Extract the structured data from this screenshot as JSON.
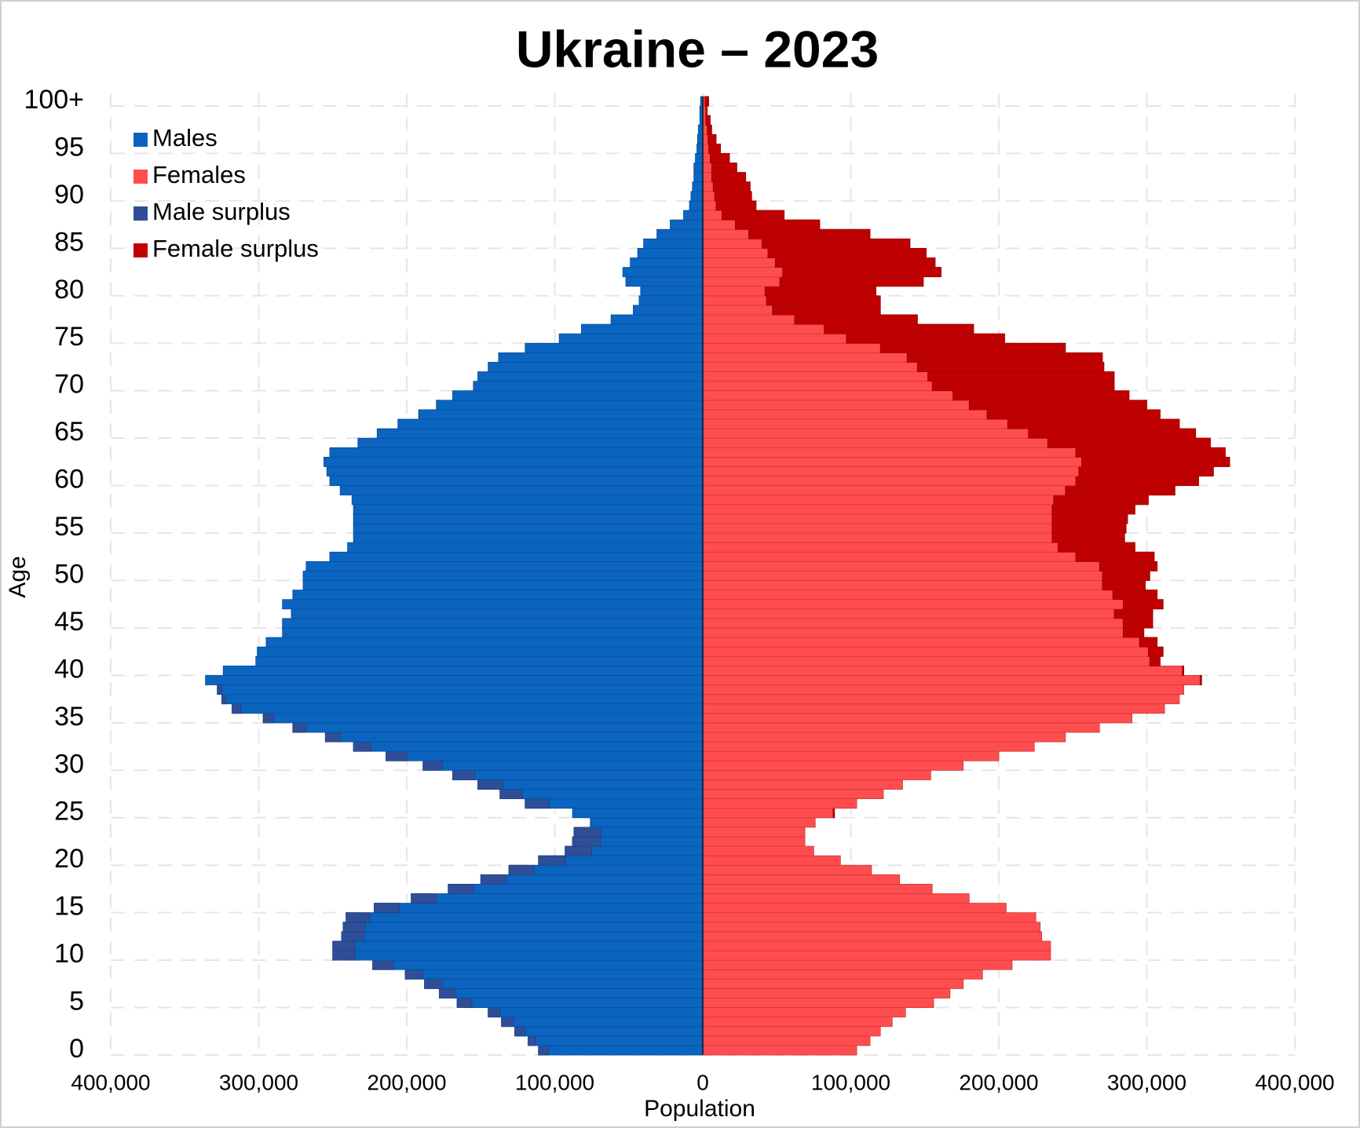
{
  "chart_data": {
    "type": "pyramid",
    "title": "Ukraine – 2023",
    "x_label": "Population",
    "y_label": "Age",
    "categories": [
      "0",
      null,
      null,
      null,
      null,
      "5",
      null,
      null,
      null,
      null,
      "10",
      null,
      null,
      null,
      null,
      "15",
      null,
      null,
      null,
      null,
      "20",
      null,
      null,
      null,
      null,
      "25",
      null,
      null,
      null,
      null,
      "30",
      null,
      null,
      null,
      null,
      "35",
      null,
      null,
      null,
      null,
      "40",
      null,
      null,
      null,
      null,
      "45",
      null,
      null,
      null,
      null,
      "50",
      null,
      null,
      null,
      null,
      "55",
      null,
      null,
      null,
      null,
      "60",
      null,
      null,
      null,
      null,
      "65",
      null,
      null,
      null,
      null,
      "70",
      null,
      null,
      null,
      null,
      "75",
      null,
      null,
      null,
      null,
      "80",
      null,
      null,
      null,
      null,
      "85",
      null,
      null,
      null,
      null,
      "90",
      null,
      null,
      null,
      null,
      "95",
      null,
      null,
      null,
      null,
      "100+"
    ],
    "series": [
      {
        "name": "Males",
        "color": "#0a64c0",
        "values": [
          111000,
          118000,
          127000,
          136000,
          145000,
          166000,
          178000,
          188000,
          201000,
          223000,
          250000,
          250000,
          244000,
          243000,
          241000,
          222000,
          197000,
          172000,
          150000,
          131000,
          111000,
          93000,
          88000,
          87000,
          76000,
          88000,
          120000,
          137000,
          152000,
          169000,
          189000,
          214000,
          236000,
          255000,
          277000,
          297000,
          318000,
          325000,
          328000,
          336000,
          324000,
          302000,
          301000,
          295000,
          284000,
          284000,
          278000,
          284000,
          277000,
          270000,
          270000,
          268000,
          252000,
          240000,
          236000,
          236000,
          236000,
          236000,
          237000,
          245000,
          252000,
          254000,
          256000,
          252000,
          233000,
          220000,
          206000,
          192000,
          180000,
          169000,
          155000,
          152000,
          145000,
          138000,
          120000,
          97000,
          82000,
          62000,
          47000,
          43000,
          42000,
          52000,
          54000,
          49000,
          44000,
          40000,
          31000,
          22000,
          13000,
          9000,
          8000,
          7000,
          6000,
          6000,
          5000,
          4000,
          3500,
          3000,
          2000,
          2000,
          1500
        ]
      },
      {
        "name": "Females",
        "color": "#ff4d4f",
        "values": [
          104000,
          113000,
          120000,
          128000,
          137000,
          156000,
          167000,
          176000,
          189000,
          209000,
          235000,
          235000,
          229000,
          228000,
          225000,
          205000,
          180000,
          155000,
          133000,
          114000,
          93000,
          75000,
          69000,
          69000,
          76000,
          89000,
          104000,
          122000,
          135000,
          154000,
          176000,
          200000,
          224000,
          245000,
          268000,
          290000,
          312000,
          322000,
          325000,
          337000,
          325000,
          309000,
          311000,
          307000,
          298000,
          304000,
          304000,
          311000,
          307000,
          299000,
          302000,
          307000,
          305000,
          292000,
          285000,
          286000,
          287000,
          292000,
          301000,
          319000,
          335000,
          345000,
          356000,
          353000,
          343000,
          333000,
          322000,
          309000,
          300000,
          288000,
          278000,
          278000,
          271000,
          270000,
          245000,
          204000,
          183000,
          145000,
          120000,
          120000,
          117000,
          149000,
          161000,
          157000,
          151000,
          140000,
          113000,
          79000,
          55000,
          36000,
          33000,
          32000,
          29000,
          23000,
          18000,
          12000,
          9000,
          6000,
          5000,
          3000,
          4000
        ]
      }
    ],
    "surplus": [
      {
        "name": "Male surplus",
        "color": "#2e4f98"
      },
      {
        "name": "Female surplus",
        "color": "#c00000"
      }
    ],
    "xlim": [
      -400000,
      400000
    ],
    "xticks": [
      {
        "value": -400000,
        "label": "400,000"
      },
      {
        "value": -300000,
        "label": "300,000"
      },
      {
        "value": -200000,
        "label": "200,000"
      },
      {
        "value": -100000,
        "label": "100,000"
      },
      0,
      {
        "value": 100000,
        "label": "100,000"
      },
      {
        "value": 200000,
        "label": "200,000"
      },
      {
        "value": 300000,
        "label": "300,000"
      },
      {
        "value": 400000,
        "label": "400,000"
      }
    ],
    "grid": true,
    "legend": "upper left"
  }
}
